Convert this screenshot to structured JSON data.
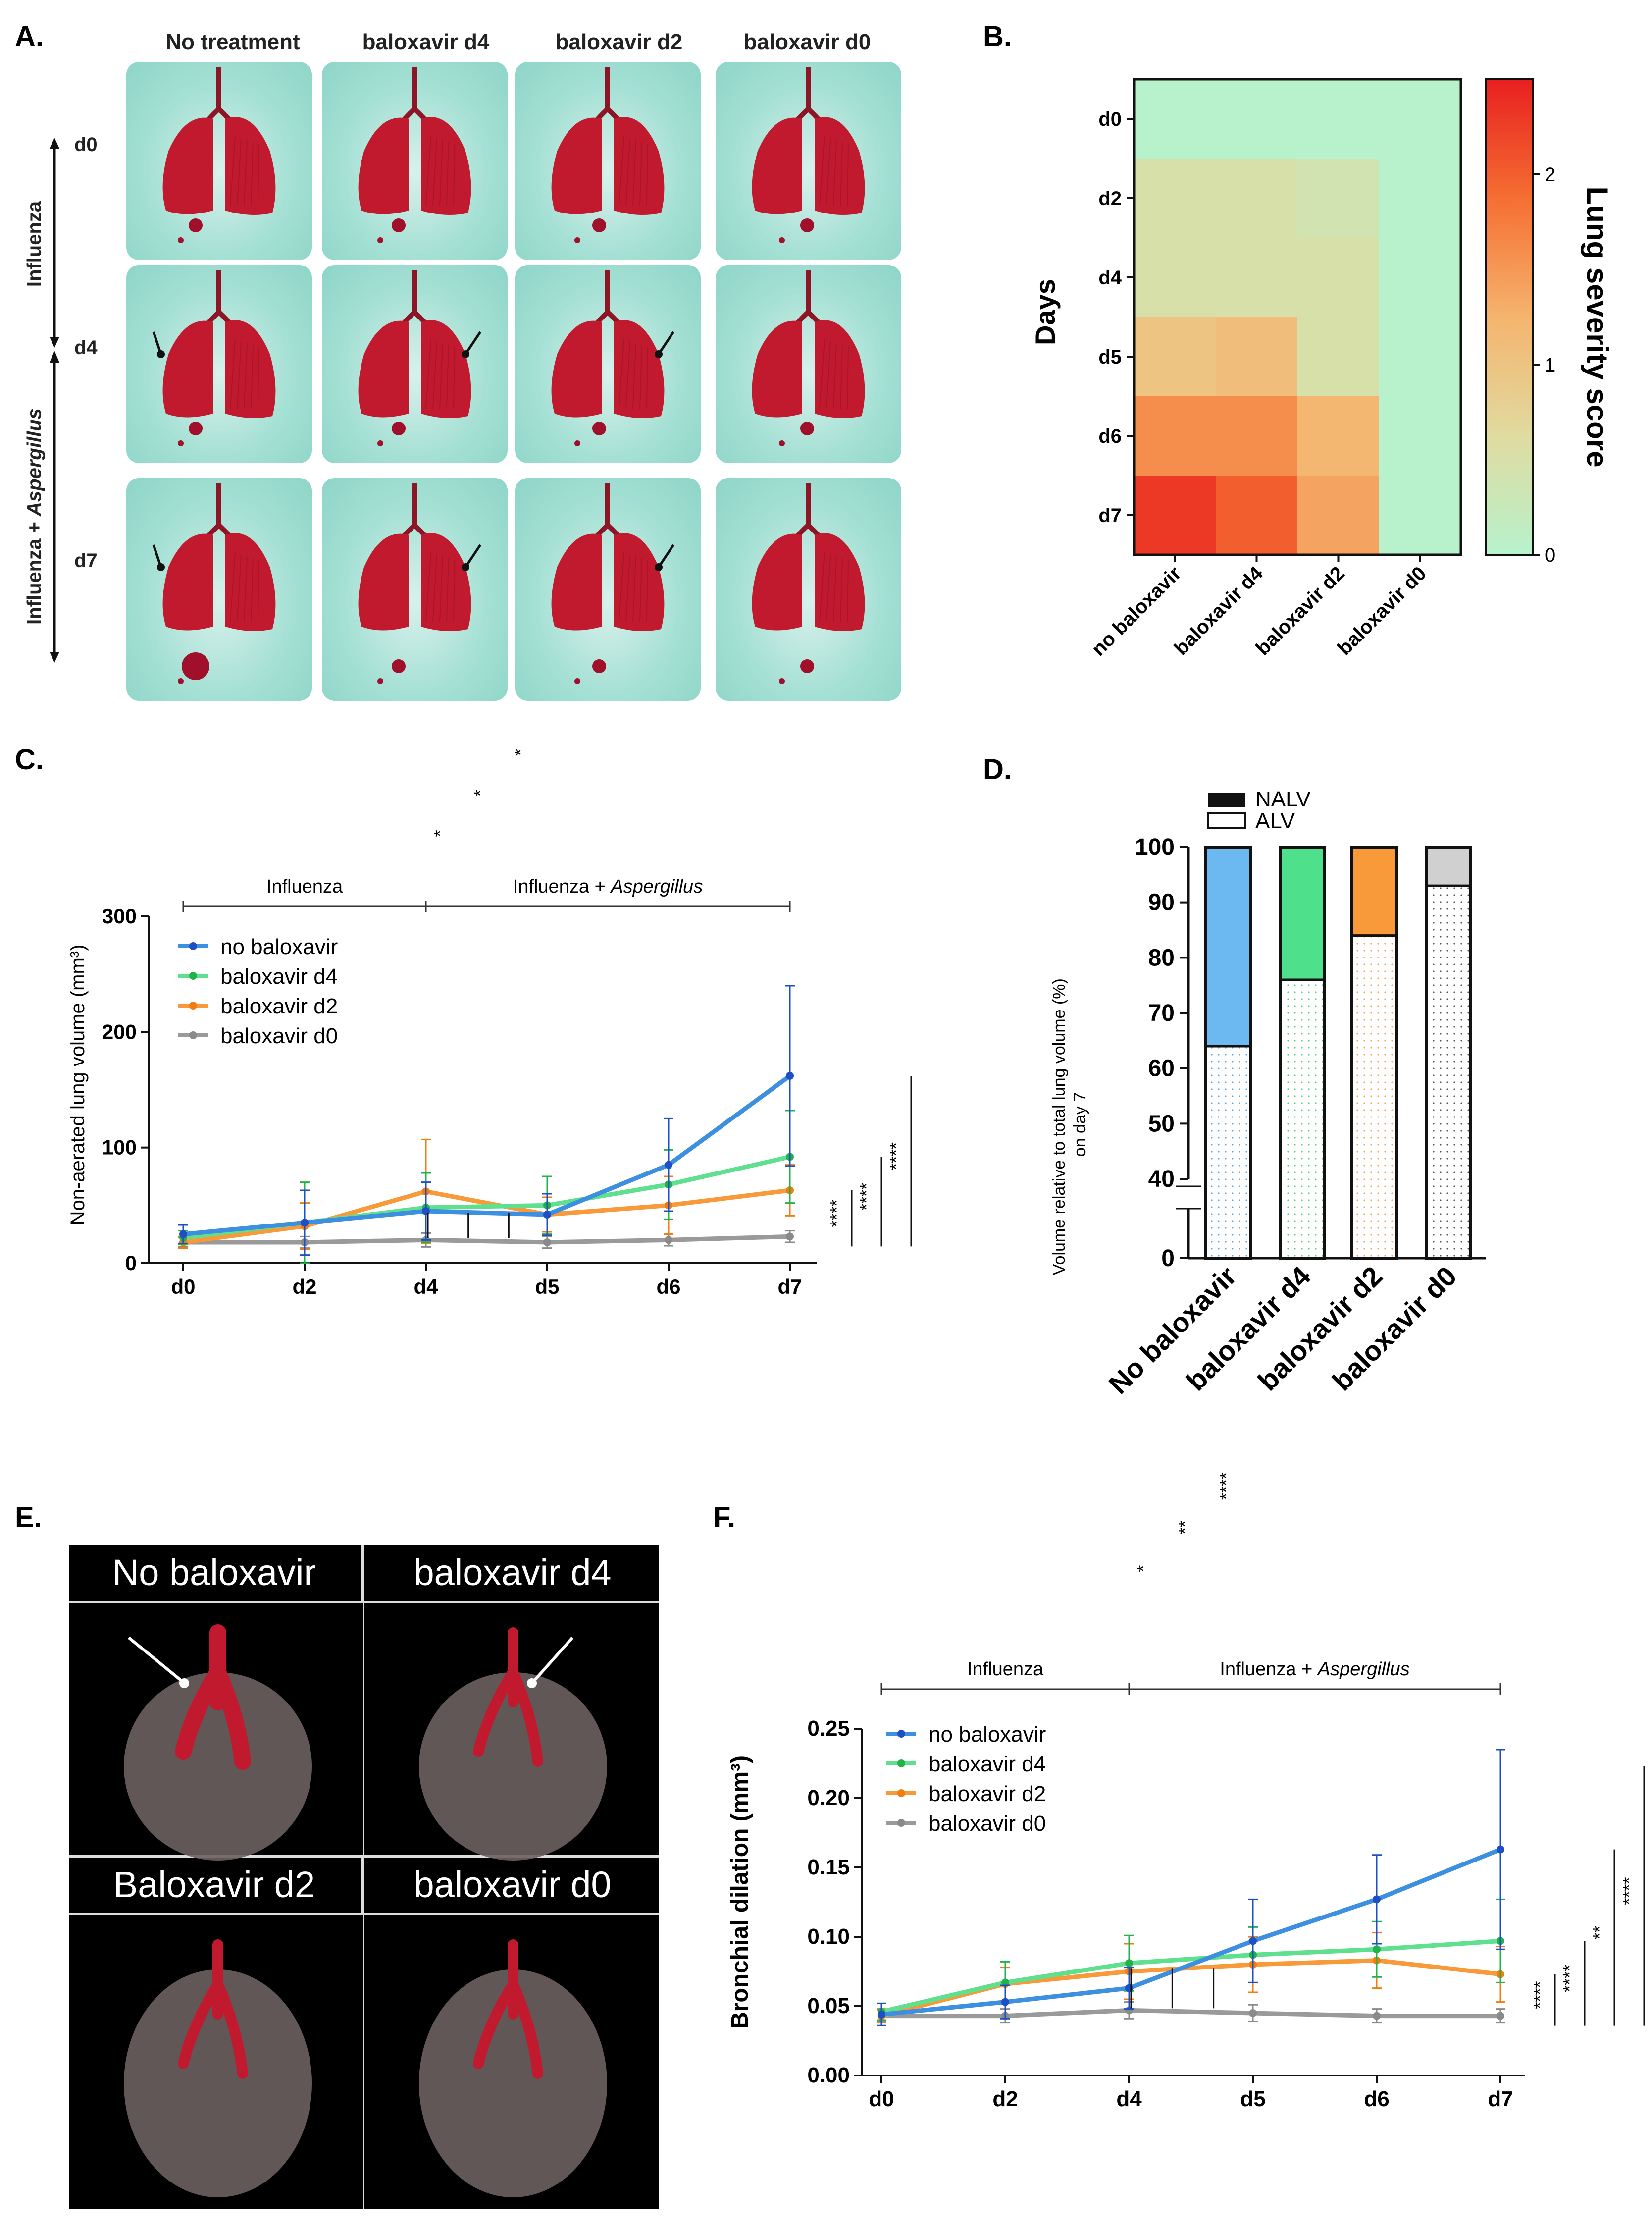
{
  "panels": {
    "A": "A.",
    "B": "B.",
    "C": "C.",
    "D": "D.",
    "E": "E.",
    "F": "F."
  },
  "panelA": {
    "columns": [
      "No treatment",
      "baloxavir d4",
      "baloxavir d2",
      "baloxavir d0"
    ],
    "rows": [
      "d0",
      "d4",
      "d7"
    ],
    "label_influenza": "Influenza",
    "label_combo_prefix": "Influenza + ",
    "label_combo_italic": "Aspergillus"
  },
  "panelE": {
    "titles": [
      "No baloxavir",
      "baloxavir d4",
      "Baloxavir d2",
      "baloxavir d0"
    ]
  },
  "colors": {
    "no_baloxavir": "#3d8fe0",
    "baloxavir_d4": "#5ee08e",
    "baloxavir_d2": "#f99a3a",
    "baloxavir_d0": "#9a9a9a",
    "lung_red": "#c11a2f"
  },
  "chart_data": [
    {
      "id": "B",
      "type": "heatmap",
      "ylabel": "Days",
      "rows": [
        "d0",
        "d2",
        "d4",
        "d5",
        "d6",
        "d7"
      ],
      "columns": [
        "no baloxavir",
        "baloxavir d4",
        "baloxavir d2",
        "baloxavir d0"
      ],
      "values": [
        [
          0,
          0,
          0,
          0
        ],
        [
          0.5,
          0.5,
          0.4,
          0
        ],
        [
          0.5,
          0.5,
          0.5,
          0
        ],
        [
          1.0,
          1.1,
          0.5,
          0
        ],
        [
          1.6,
          1.6,
          1.2,
          0
        ],
        [
          2.3,
          2.0,
          1.4,
          0
        ]
      ],
      "colorbar_label": "Lung severity score",
      "colorbar_ticks": [
        "0",
        "1",
        "2"
      ],
      "vmin": 0,
      "vmax": 2.5
    },
    {
      "id": "C",
      "type": "line",
      "ylabel": "Non-aerated lung volume (mm³)",
      "x": [
        "d0",
        "d2",
        "d4",
        "d5",
        "d6",
        "d7"
      ],
      "ylim": [
        0,
        300
      ],
      "yticks": [
        "0",
        "100",
        "200",
        "300"
      ],
      "phase_influenza": "Influenza",
      "phase_combo_prefix": "Influenza + ",
      "phase_combo_italic": "Aspergillus",
      "series": [
        {
          "name": "no baloxavir",
          "values": [
            25,
            35,
            45,
            42,
            85,
            162
          ],
          "err": [
            8,
            28,
            25,
            18,
            40,
            78
          ]
        },
        {
          "name": "baloxavir d4",
          "values": [
            22,
            35,
            48,
            50,
            68,
            92
          ],
          "err": [
            6,
            35,
            30,
            25,
            30,
            40
          ]
        },
        {
          "name": "baloxavir d2",
          "values": [
            18,
            32,
            62,
            42,
            50,
            63
          ],
          "err": [
            5,
            20,
            45,
            15,
            25,
            22
          ]
        },
        {
          "name": "baloxavir d0",
          "values": [
            18,
            18,
            20,
            18,
            20,
            23
          ],
          "err": [
            4,
            5,
            6,
            5,
            5,
            5
          ]
        }
      ],
      "sig_between": [
        "*",
        "*",
        "*"
      ],
      "sig_right": [
        "****",
        "****",
        "****"
      ]
    },
    {
      "id": "D",
      "type": "bar",
      "stacked": true,
      "ylabel": "Volume relative to total lung volume (%) on day 7",
      "categories": [
        "No baloxavir",
        "baloxavir d4",
        "baloxavir d2",
        "baloxavir d0"
      ],
      "series": [
        {
          "name": "ALV",
          "values": [
            64,
            76,
            84,
            93
          ]
        },
        {
          "name": "NALV",
          "values": [
            36,
            24,
            16,
            7
          ]
        }
      ],
      "yticks": [
        "0",
        "40",
        "50",
        "60",
        "70",
        "80",
        "90",
        "100"
      ],
      "legend": [
        "NALV",
        "ALV"
      ]
    },
    {
      "id": "F",
      "type": "line",
      "ylabel": "Bronchial dilation (mm³)",
      "x": [
        "d0",
        "d2",
        "d4",
        "d5",
        "d6",
        "d7"
      ],
      "ylim": [
        0,
        0.25
      ],
      "yticks": [
        "0.00",
        "0.05",
        "0.10",
        "0.15",
        "0.20",
        "0.25"
      ],
      "phase_influenza": "Influenza",
      "phase_combo_prefix": "Influenza + ",
      "phase_combo_italic": "Aspergillus",
      "series": [
        {
          "name": "no baloxavir",
          "values": [
            0.044,
            0.053,
            0.063,
            0.097,
            0.127,
            0.163
          ],
          "err": [
            0.008,
            0.012,
            0.015,
            0.03,
            0.032,
            0.072
          ]
        },
        {
          "name": "baloxavir d4",
          "values": [
            0.046,
            0.067,
            0.081,
            0.087,
            0.091,
            0.097
          ],
          "err": [
            0.006,
            0.015,
            0.02,
            0.02,
            0.02,
            0.03
          ]
        },
        {
          "name": "baloxavir d2",
          "values": [
            0.043,
            0.066,
            0.075,
            0.08,
            0.083,
            0.073
          ],
          "err": [
            0.005,
            0.012,
            0.02,
            0.02,
            0.02,
            0.02
          ]
        },
        {
          "name": "baloxavir d0",
          "values": [
            0.043,
            0.043,
            0.047,
            0.045,
            0.043,
            0.043
          ],
          "err": [
            0.004,
            0.005,
            0.006,
            0.006,
            0.005,
            0.005
          ]
        }
      ],
      "sig_between": [
        "*",
        "**",
        "****"
      ],
      "sig_right": [
        "****",
        "****",
        "**",
        "****"
      ]
    }
  ]
}
